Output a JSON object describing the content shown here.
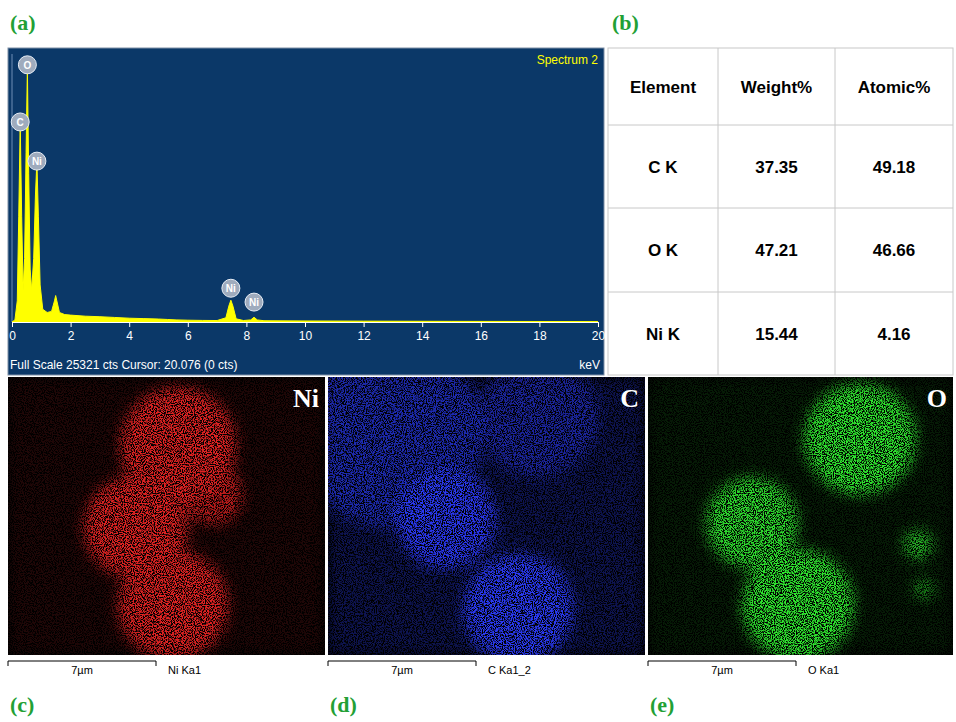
{
  "chart_data": {
    "type": "area",
    "title": "Spectrum 2",
    "xlabel": "keV",
    "footer": "Full Scale 25321 cts Cursor: 20.076 (0 cts)",
    "color": "#ffff00",
    "x": [
      0,
      0.1,
      0.18,
      0.23,
      0.28,
      0.33,
      0.38,
      0.43,
      0.48,
      0.525,
      0.57,
      0.62,
      0.67,
      0.74,
      0.8,
      0.85,
      0.9,
      0.96,
      1.05,
      1.2,
      1.35,
      1.45,
      1.49,
      1.53,
      1.62,
      1.8,
      2.0,
      2.5,
      3.0,
      3.5,
      4.0,
      4.5,
      5.0,
      5.3,
      5.6,
      6.0,
      6.5,
      7.0,
      7.3,
      7.4,
      7.47,
      7.54,
      7.65,
      7.9,
      8.15,
      8.26,
      8.37,
      8.6,
      10,
      12,
      15,
      20
    ],
    "values": [
      0,
      200,
      2000,
      10000,
      18900,
      10000,
      3000,
      6000,
      16000,
      24000,
      14000,
      5000,
      3000,
      6000,
      12000,
      15200,
      10000,
      3500,
      1200,
      900,
      1000,
      2000,
      2500,
      2000,
      900,
      700,
      650,
      550,
      500,
      430,
      360,
      320,
      280,
      240,
      200,
      170,
      150,
      140,
      400,
      1500,
      2060,
      1500,
      300,
      140,
      200,
      450,
      200,
      120,
      100,
      80,
      60,
      40
    ],
    "xlim": [
      0,
      20
    ],
    "xticks": [
      0,
      2,
      4,
      6,
      8,
      10,
      12,
      14,
      16,
      18,
      20
    ],
    "ylim": [
      0,
      25321
    ],
    "tick_labels": "x",
    "annotations": [
      {
        "text": "O",
        "x": 0.525,
        "y": 24300
      },
      {
        "text": "C",
        "x": 0.28,
        "y": 18900
      },
      {
        "text": "Ni",
        "x": 0.85,
        "y": 15200
      },
      {
        "text": "Ni",
        "x": 7.47,
        "y": 3190
      },
      {
        "text": "Ni",
        "x": 8.26,
        "y": 1880
      }
    ]
  },
  "table": {
    "header": [
      "Element",
      "Weight%",
      "Atomic%"
    ],
    "rows": [
      [
        "C K",
        "37.35",
        "49.18"
      ],
      [
        "O K",
        "47.21",
        "46.66"
      ],
      [
        "Ni K",
        "15.44",
        "4.16"
      ]
    ]
  },
  "maps": [
    {
      "element": "Ni",
      "color": "#e02020",
      "scale_bar": "7µm",
      "caption": "Ni Ka1"
    },
    {
      "element": "C",
      "color": "#2b3cff",
      "scale_bar": "7µm",
      "caption": "C Ka1_2"
    },
    {
      "element": "O",
      "color": "#2ee62e",
      "scale_bar": "7µm",
      "caption": "O Ka1"
    }
  ],
  "panel_labels": [
    "(a)",
    "(b)",
    "(c)",
    "(d)",
    "(e)"
  ]
}
